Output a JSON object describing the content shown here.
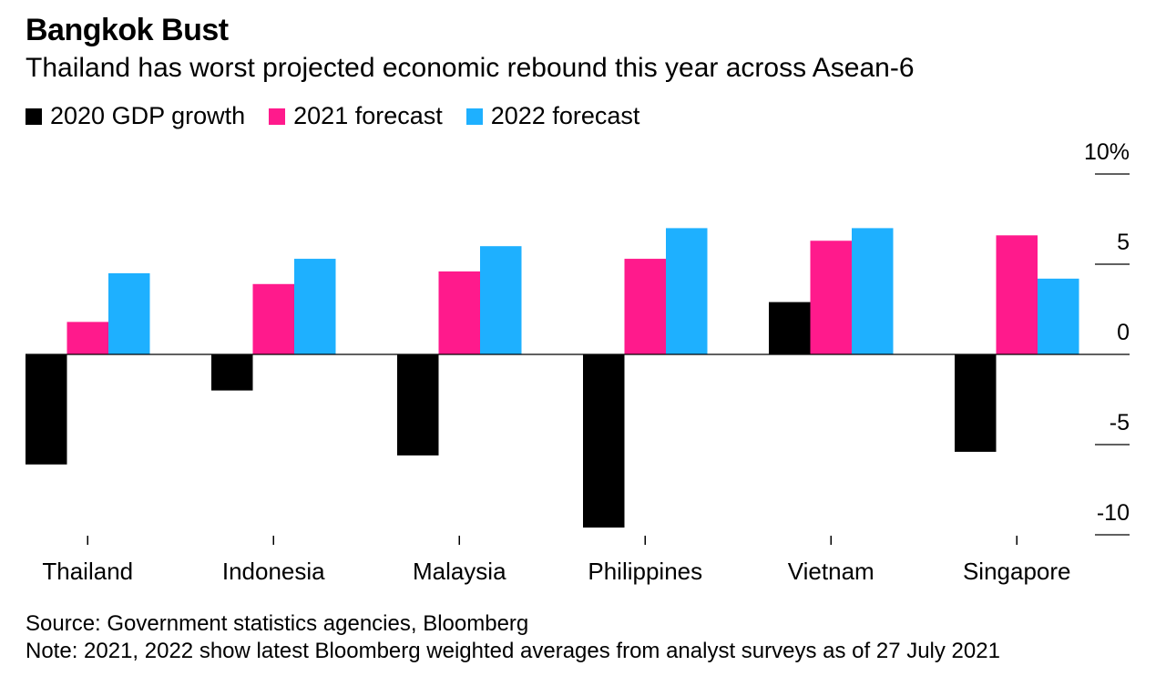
{
  "title": "Bangkok Bust",
  "subtitle": "Thailand has worst projected economic rebound this year across Asean-6",
  "legend": [
    {
      "label": "2020 GDP growth",
      "color": "#000000"
    },
    {
      "label": "2021 forecast",
      "color": "#ff1a8c"
    },
    {
      "label": "2022 forecast",
      "color": "#1eb0ff"
    }
  ],
  "footer": {
    "source": "Source: Government statistics agencies, Bloomberg",
    "note": "Note: 2021, 2022 show latest Bloomberg weighted averages from analyst surveys as of 27 July 2021"
  },
  "chart_data": {
    "type": "bar",
    "title": "Bangkok Bust",
    "subtitle": "Thailand has worst projected economic rebound this year across Asean-6",
    "categories": [
      "Thailand",
      "Indonesia",
      "Malaysia",
      "Philippines",
      "Vietnam",
      "Singapore"
    ],
    "series": [
      {
        "name": "2020 GDP growth",
        "color": "#000000",
        "values": [
          -6.1,
          -2.0,
          -5.6,
          -9.6,
          2.9,
          -5.4
        ]
      },
      {
        "name": "2021 forecast",
        "color": "#ff1a8c",
        "values": [
          1.8,
          3.9,
          4.6,
          5.3,
          6.3,
          6.6
        ]
      },
      {
        "name": "2022 forecast",
        "color": "#1eb0ff",
        "values": [
          4.5,
          5.3,
          6.0,
          7.0,
          7.0,
          4.2
        ]
      }
    ],
    "ylim": [
      -10,
      10
    ],
    "yticks": [
      10,
      5,
      0,
      -5,
      -10
    ],
    "ytick_labels": [
      "10%",
      "5",
      "0",
      "-5",
      "-10"
    ],
    "y_axis_side": "right",
    "grid": false,
    "legend_position": "top-left"
  }
}
